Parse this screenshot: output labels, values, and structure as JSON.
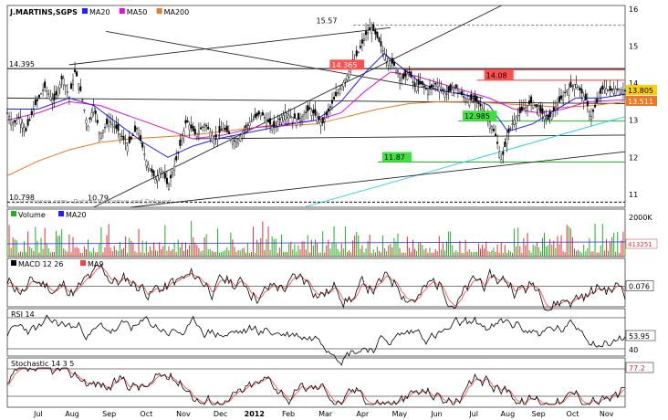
{
  "chart_data": {
    "type": "line",
    "title": "J.MARTINS,SGPS",
    "legend_main": [
      {
        "name": "MA20",
        "color": "#1f1fff"
      },
      {
        "name": "MA50",
        "color": "#e010d8"
      },
      {
        "name": "MA200",
        "color": "#f07820"
      }
    ],
    "x_ticks": [
      "Jul",
      "Aug",
      "Sep",
      "Oct",
      "Nov",
      "Dec",
      "2012",
      "Feb",
      "Mar",
      "Apr",
      "May",
      "Jun",
      "Jul",
      "Aug",
      "Sep",
      "Oct",
      "Nov"
    ],
    "price": {
      "ylim": [
        10.65,
        16.1
      ],
      "y_ticks": [
        "16",
        "15",
        "14",
        "13",
        "12",
        "11"
      ],
      "price_path": [
        [
          0,
          13.2
        ],
        [
          0.01,
          12.9
        ],
        [
          0.02,
          13.1
        ],
        [
          0.03,
          12.7
        ],
        [
          0.045,
          13.4
        ],
        [
          0.06,
          13.9
        ],
        [
          0.075,
          13.5
        ],
        [
          0.09,
          14.2
        ],
        [
          0.1,
          13.6
        ],
        [
          0.11,
          14.35
        ],
        [
          0.12,
          13.7
        ],
        [
          0.13,
          12.8
        ],
        [
          0.14,
          13.4
        ],
        [
          0.15,
          12.6
        ],
        [
          0.165,
          13.0
        ],
        [
          0.18,
          12.7
        ],
        [
          0.195,
          12.3
        ],
        [
          0.21,
          12.8
        ],
        [
          0.225,
          11.9
        ],
        [
          0.24,
          11.4
        ],
        [
          0.25,
          11.7
        ],
        [
          0.26,
          11.2
        ],
        [
          0.275,
          12.0
        ],
        [
          0.29,
          13.0
        ],
        [
          0.305,
          12.6
        ],
        [
          0.32,
          12.9
        ],
        [
          0.335,
          12.5
        ],
        [
          0.35,
          12.8
        ],
        [
          0.37,
          12.4
        ],
        [
          0.39,
          12.9
        ],
        [
          0.41,
          13.2
        ],
        [
          0.43,
          12.8
        ],
        [
          0.45,
          13.2
        ],
        [
          0.47,
          13.0
        ],
        [
          0.49,
          13.3
        ],
        [
          0.51,
          12.9
        ],
        [
          0.53,
          13.6
        ],
        [
          0.55,
          14.2
        ],
        [
          0.57,
          14.9
        ],
        [
          0.58,
          15.3
        ],
        [
          0.59,
          15.5
        ],
        [
          0.6,
          15.2
        ],
        [
          0.61,
          14.8
        ],
        [
          0.62,
          14.6
        ],
        [
          0.63,
          14.4
        ],
        [
          0.64,
          14.1
        ],
        [
          0.65,
          14.3
        ],
        [
          0.66,
          13.9
        ],
        [
          0.67,
          14.0
        ],
        [
          0.68,
          13.8
        ],
        [
          0.695,
          14.0
        ],
        [
          0.71,
          13.7
        ],
        [
          0.725,
          13.9
        ],
        [
          0.74,
          13.6
        ],
        [
          0.76,
          13.5
        ],
        [
          0.775,
          13.2
        ],
        [
          0.79,
          12.6
        ],
        [
          0.8,
          11.9
        ],
        [
          0.81,
          12.6
        ],
        [
          0.82,
          13.0
        ],
        [
          0.835,
          13.3
        ],
        [
          0.85,
          13.5
        ],
        [
          0.865,
          13.2
        ],
        [
          0.875,
          13.0
        ],
        [
          0.89,
          13.4
        ],
        [
          0.905,
          13.8
        ],
        [
          0.92,
          14.0
        ],
        [
          0.935,
          13.6
        ],
        [
          0.945,
          13.1
        ],
        [
          0.955,
          13.5
        ],
        [
          0.965,
          13.9
        ],
        [
          0.975,
          13.8
        ],
        [
          0.985,
          13.85
        ],
        [
          1,
          13.8
        ]
      ],
      "ma20_path": [
        [
          0,
          13.3
        ],
        [
          0.05,
          13.3
        ],
        [
          0.1,
          13.6
        ],
        [
          0.14,
          13.4
        ],
        [
          0.18,
          12.9
        ],
        [
          0.22,
          12.4
        ],
        [
          0.26,
          12.0
        ],
        [
          0.3,
          12.3
        ],
        [
          0.34,
          12.5
        ],
        [
          0.4,
          12.7
        ],
        [
          0.46,
          12.9
        ],
        [
          0.5,
          13.0
        ],
        [
          0.54,
          13.5
        ],
        [
          0.58,
          14.3
        ],
        [
          0.61,
          14.8
        ],
        [
          0.64,
          14.4
        ],
        [
          0.67,
          14.0
        ],
        [
          0.7,
          13.8
        ],
        [
          0.74,
          13.7
        ],
        [
          0.78,
          13.4
        ],
        [
          0.81,
          12.7
        ],
        [
          0.85,
          12.9
        ],
        [
          0.88,
          13.2
        ],
        [
          0.92,
          13.6
        ],
        [
          0.96,
          13.6
        ],
        [
          1,
          13.7
        ]
      ],
      "ma50_path": [
        [
          0,
          13.0
        ],
        [
          0.05,
          13.2
        ],
        [
          0.1,
          13.5
        ],
        [
          0.15,
          13.4
        ],
        [
          0.2,
          13.1
        ],
        [
          0.25,
          12.8
        ],
        [
          0.3,
          12.5
        ],
        [
          0.35,
          12.6
        ],
        [
          0.4,
          12.8
        ],
        [
          0.45,
          12.9
        ],
        [
          0.5,
          13.0
        ],
        [
          0.54,
          13.2
        ],
        [
          0.58,
          13.8
        ],
        [
          0.62,
          14.3
        ],
        [
          0.66,
          14.2
        ],
        [
          0.7,
          14.0
        ],
        [
          0.74,
          13.8
        ],
        [
          0.78,
          13.6
        ],
        [
          0.82,
          13.3
        ],
        [
          0.86,
          13.2
        ],
        [
          0.9,
          13.3
        ],
        [
          0.94,
          13.5
        ],
        [
          1,
          13.55
        ]
      ],
      "ma200_path": [
        [
          0,
          11.5
        ],
        [
          0.05,
          11.9
        ],
        [
          0.1,
          12.2
        ],
        [
          0.15,
          12.4
        ],
        [
          0.2,
          12.5
        ],
        [
          0.25,
          12.55
        ],
        [
          0.3,
          12.6
        ],
        [
          0.35,
          12.7
        ],
        [
          0.4,
          12.8
        ],
        [
          0.45,
          12.85
        ],
        [
          0.5,
          12.9
        ],
        [
          0.55,
          13.1
        ],
        [
          0.6,
          13.3
        ],
        [
          0.65,
          13.45
        ],
        [
          0.7,
          13.5
        ],
        [
          0.75,
          13.5
        ],
        [
          0.8,
          13.45
        ],
        [
          0.85,
          13.4
        ],
        [
          0.9,
          13.35
        ],
        [
          0.95,
          13.4
        ],
        [
          1,
          13.5
        ]
      ],
      "price_labels": [
        {
          "text": "14.395",
          "v": 14.395,
          "side": "left",
          "color": "#000000"
        },
        {
          "text": "15.57",
          "v": 15.57,
          "side": "mid",
          "color": "#000000"
        },
        {
          "text": "14.365",
          "v": 14.365,
          "side": "mid",
          "color": "#ff4040"
        },
        {
          "text": "14.08",
          "v": 14.08,
          "side": "mid",
          "color": "#ff4040"
        },
        {
          "text": "12.985",
          "v": 12.985,
          "side": "mid",
          "color": "#20d020"
        },
        {
          "text": "11.87",
          "v": 11.87,
          "side": "mid",
          "color": "#20d020"
        },
        {
          "text": "10.798",
          "v": 10.8,
          "side": "left",
          "color": "#000000"
        },
        {
          "text": "10.79",
          "v": 10.79,
          "side": "mid2",
          "color": "#000000"
        }
      ],
      "right_labels": [
        {
          "text": "13.805",
          "color": "#ffd000",
          "text_color": "#000000"
        },
        {
          "text": "13.511",
          "color": "#f07820",
          "text_color": "#ffffff"
        }
      ],
      "watermark": "© IT-Finance.com - Data is Indicative and Delayed"
    },
    "volume": {
      "legend": [
        {
          "name": "Volume",
          "color": "#20b020"
        },
        {
          "name": "MA20",
          "color": "#1f1fff"
        }
      ],
      "top_label": "2000K",
      "last_label": "413251"
    },
    "macd": {
      "legend": [
        {
          "name": "MACD 12 26",
          "color": "#000000"
        },
        {
          "name": "MA9",
          "color": "#ff4040"
        }
      ],
      "last_label": "0.076"
    },
    "rsi": {
      "legend": [
        {
          "name": "RSI 14",
          "color": "#000000"
        }
      ],
      "last_label": "53.95",
      "level_label": "40"
    },
    "stochastic": {
      "legend": [
        {
          "name": "Stochastic 14 3 5",
          "color": "#000000"
        }
      ],
      "last_label": "77.2"
    }
  }
}
